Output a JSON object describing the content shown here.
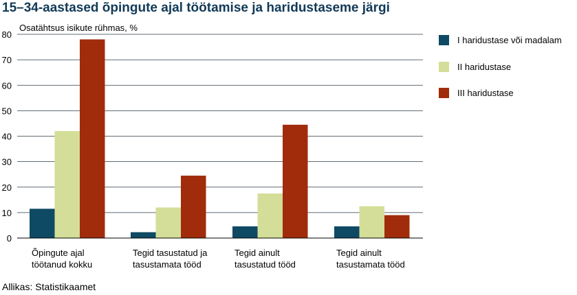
{
  "chart_data": {
    "type": "bar",
    "title": "15–34-aastased õpingute ajal töötamise ja haridustaseme järgi",
    "ylabel": "Osatähtsus isikute rühmas, %",
    "xlabel": "",
    "ylim": [
      0,
      80
    ],
    "yticks": [
      0,
      10,
      20,
      30,
      40,
      50,
      60,
      70,
      80
    ],
    "grid": true,
    "legend_position": "right",
    "categories": [
      [
        "Õpingute ajal",
        "töötanud kokku"
      ],
      [
        "Tegid tasustatud ja",
        "tasustamata tööd"
      ],
      [
        "Tegid ainult",
        "tasustatud tööd"
      ],
      [
        "Tegid ainult",
        "tasustamata tööd"
      ]
    ],
    "series": [
      {
        "name": "I haridustase või madalam",
        "color": "#0e4a64",
        "values": [
          11.5,
          2.3,
          4.6,
          4.6
        ]
      },
      {
        "name": "II haridustase",
        "color": "#d4de98",
        "values": [
          42,
          12,
          17.5,
          12.5
        ]
      },
      {
        "name": "III haridustase",
        "color": "#a02c0c",
        "values": [
          78,
          24.5,
          44.5,
          9
        ]
      }
    ],
    "source": "Allikas: Statistikaamet"
  }
}
